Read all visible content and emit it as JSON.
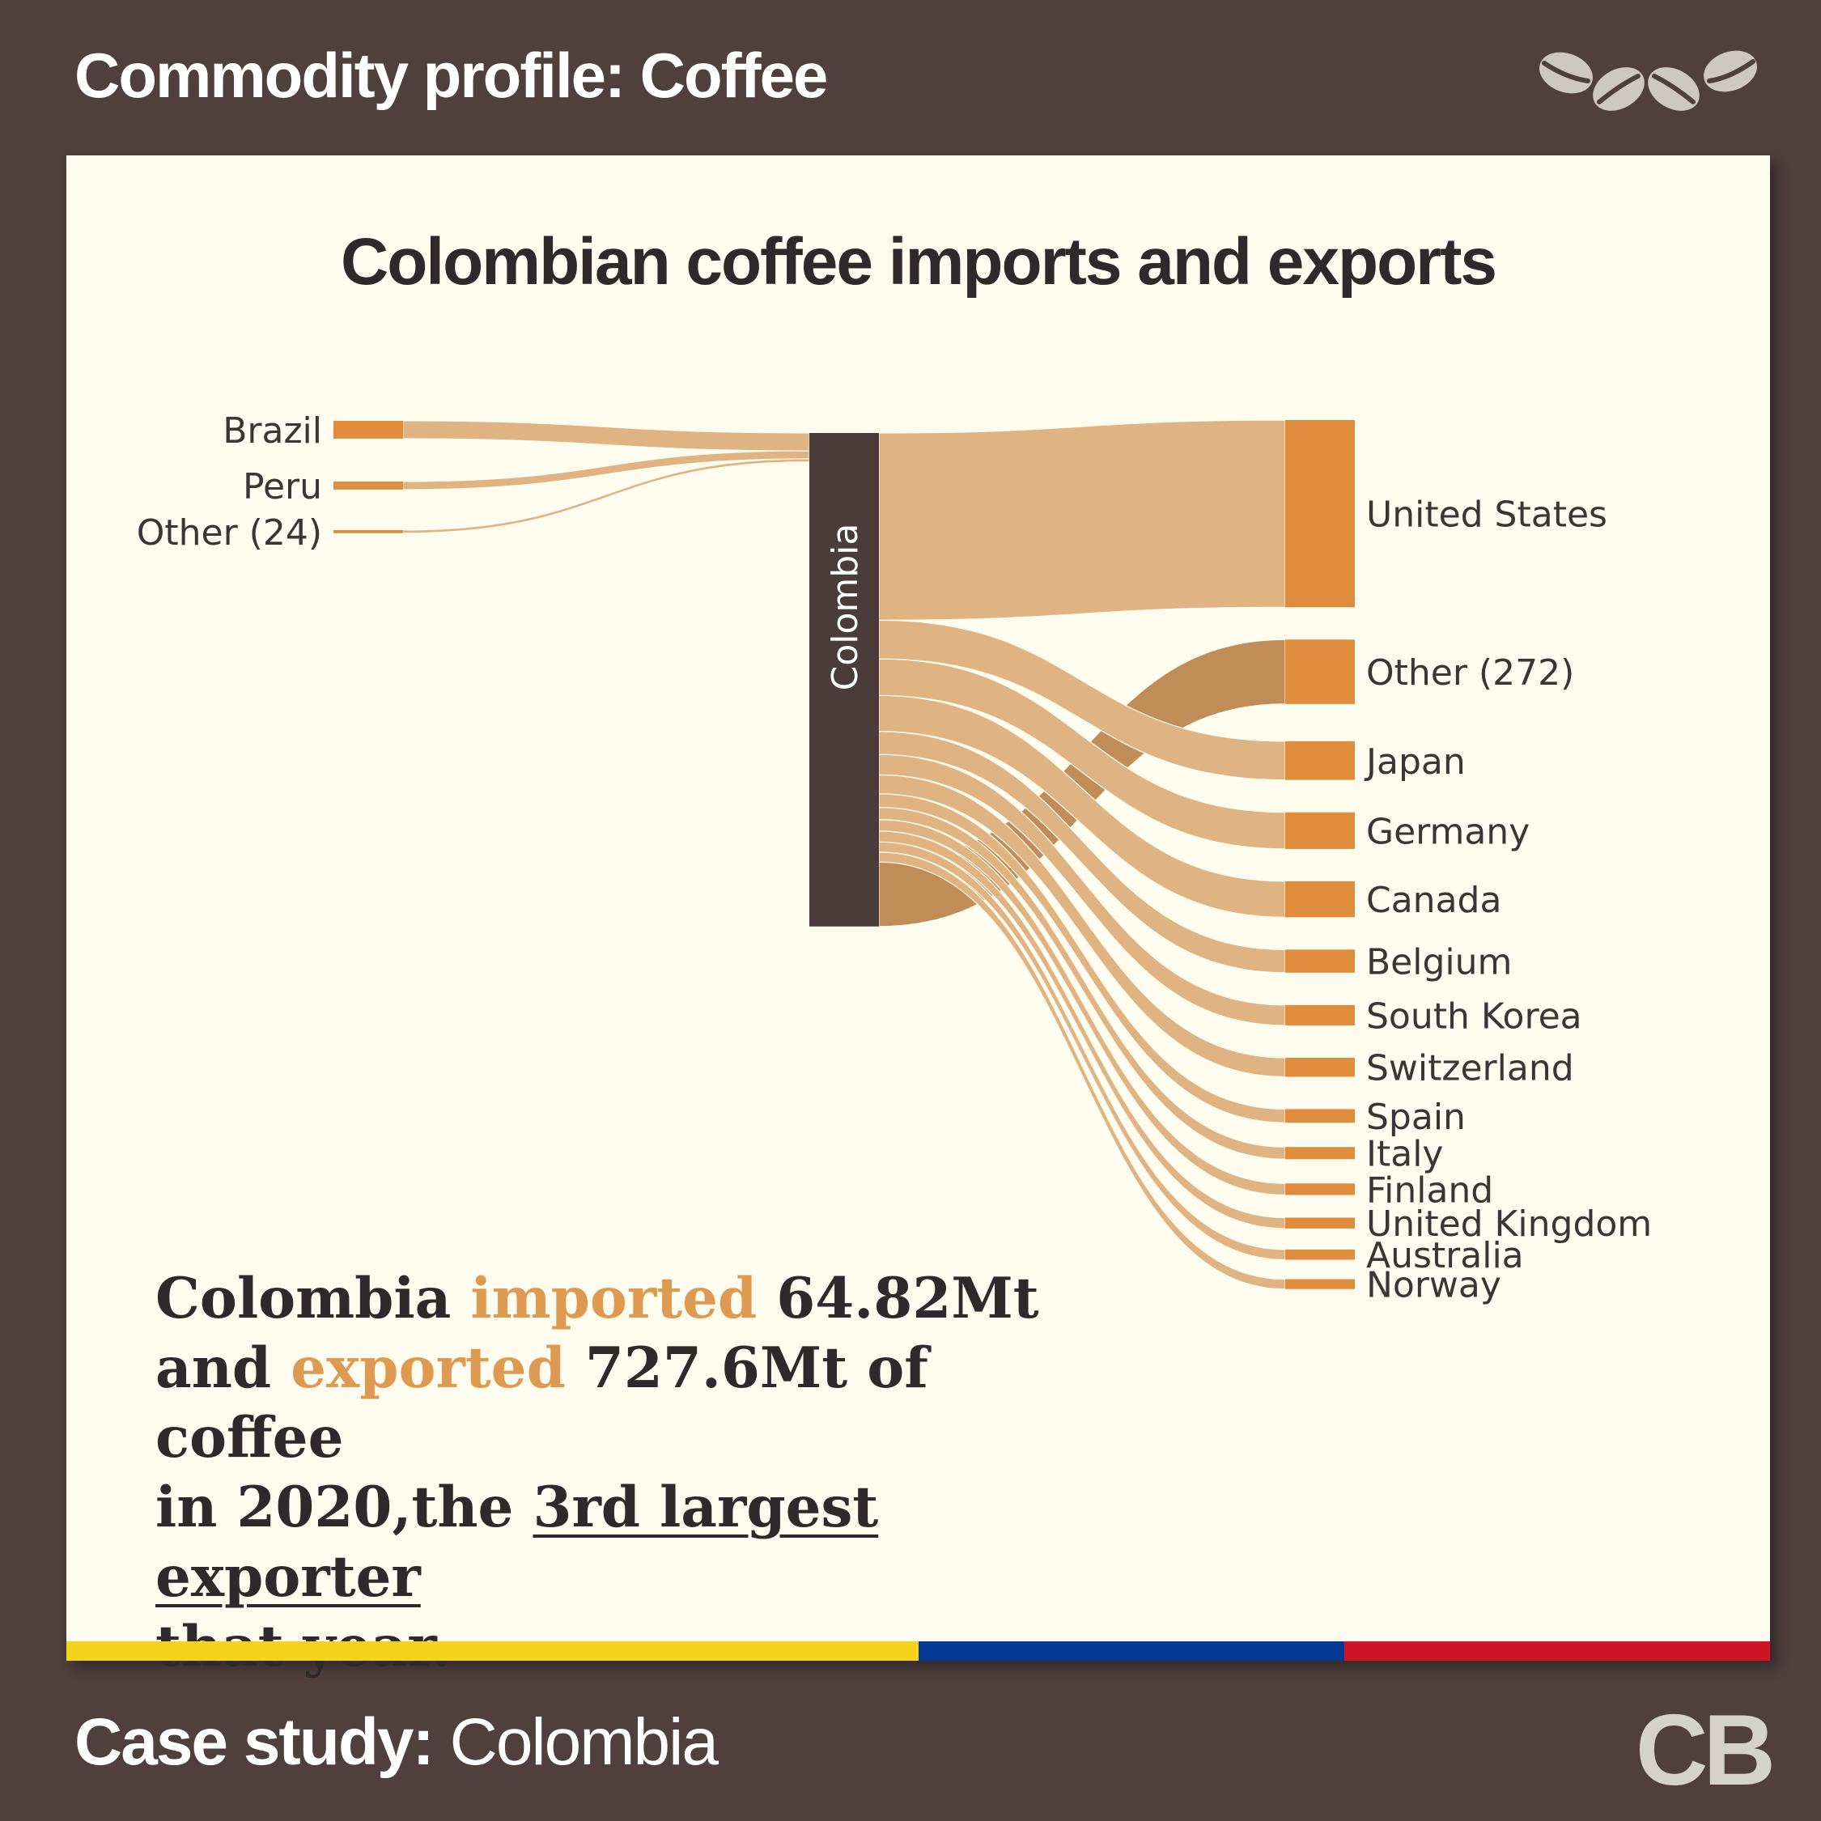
{
  "header": {
    "title": "Commodity profile: Coffee",
    "icon": "coffee-beans-icon"
  },
  "chart_title": "Colombian coffee imports and exports",
  "chart_data": {
    "type": "sankey",
    "center_node": "Colombia",
    "units": "Mt",
    "imports": [
      {
        "name": "Brazil",
        "value": 40
      },
      {
        "name": "Peru",
        "value": 18
      },
      {
        "name": "Other (24)",
        "value": 6.82
      }
    ],
    "exports": [
      {
        "name": "United States",
        "value": 276
      },
      {
        "name": "Other (272)",
        "value": 95
      },
      {
        "name": "Japan",
        "value": 57
      },
      {
        "name": "Germany",
        "value": 54
      },
      {
        "name": "Canada",
        "value": 53
      },
      {
        "name": "Belgium",
        "value": 34
      },
      {
        "name": "South Korea",
        "value": 30
      },
      {
        "name": "Switzerland",
        "value": 28
      },
      {
        "name": "Spain",
        "value": 20
      },
      {
        "name": "Italy",
        "value": 18
      },
      {
        "name": "Finland",
        "value": 17
      },
      {
        "name": "United Kingdom",
        "value": 16
      },
      {
        "name": "Australia",
        "value": 15
      },
      {
        "name": "Norway",
        "value": 14.6
      }
    ]
  },
  "summary": {
    "p1": "Colombia ",
    "imported": "imported",
    "p2": " 64.82Mt",
    "p3": "and ",
    "exported": "exported",
    "p4": " 727.6Mt of coffee",
    "p5": "in 2020,the ",
    "highlight": "3rd largest exporter",
    "p6": "that year."
  },
  "footer": {
    "label_bold": "Case study:",
    "label_rest": " Colombia",
    "logo": "CB"
  },
  "colors": {
    "flow": "#e0b482",
    "node": "#df8c3c",
    "center": "#4a3c3a",
    "flag": [
      "#f5d21c",
      "#043a95",
      "#cf1426"
    ]
  }
}
